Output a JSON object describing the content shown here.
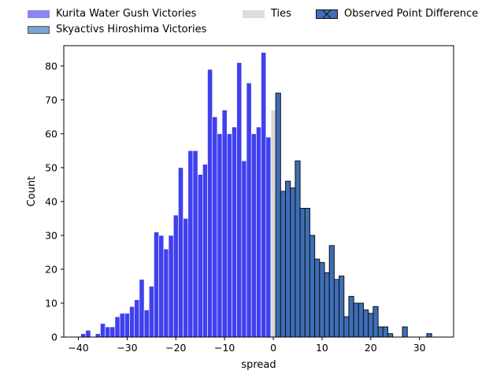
{
  "chart_data": {
    "type": "bar",
    "xlabel": "spread",
    "ylabel": "Count",
    "xlim": [
      -43,
      37
    ],
    "ylim": [
      0,
      86
    ],
    "bin_width": 1,
    "x_ticks": [
      -40,
      -30,
      -20,
      -10,
      0,
      10,
      20,
      30
    ],
    "y_ticks": [
      0,
      10,
      20,
      30,
      40,
      50,
      60,
      70,
      80
    ],
    "x_tick_labels": [
      "−40",
      "−30",
      "−20",
      "−10",
      "0",
      "10",
      "20",
      "30"
    ],
    "y_tick_labels": [
      "0",
      "10",
      "20",
      "30",
      "40",
      "50",
      "60",
      "70",
      "80"
    ],
    "legend_placement": "above plot",
    "series": [
      {
        "name": "Kurita Water Gush Victories",
        "color": "#4040ef",
        "x": [
          -39,
          -38,
          -36,
          -35,
          -34,
          -33,
          -32,
          -31,
          -30,
          -29,
          -28,
          -27,
          -26,
          -25,
          -24,
          -23,
          -22,
          -21,
          -20,
          -19,
          -18,
          -17,
          -16,
          -15,
          -14,
          -13,
          -12,
          -11,
          -10,
          -9,
          -8,
          -7,
          -6,
          -5,
          -4,
          -3,
          -2,
          -1
        ],
        "values": [
          1,
          2,
          1,
          4,
          3,
          3,
          6,
          7,
          7,
          9,
          11,
          17,
          8,
          15,
          31,
          30,
          26,
          30,
          36,
          50,
          35,
          55,
          55,
          48,
          51,
          79,
          65,
          60,
          67,
          60,
          62,
          81,
          52,
          75,
          60,
          62,
          84,
          59
        ]
      },
      {
        "name": "Ties",
        "color": "#d9d9d9",
        "x": [
          0
        ],
        "values": [
          67
        ]
      },
      {
        "name": "Skyactivs Hiroshima Victories",
        "color": "#3d6eb7",
        "x": [
          1,
          2,
          3,
          4,
          5,
          6,
          7,
          8,
          9,
          10,
          11,
          12,
          13,
          14,
          15,
          16,
          17,
          18,
          19,
          20,
          21,
          22,
          23,
          24,
          27,
          32
        ],
        "values": [
          72,
          43,
          46,
          44,
          52,
          38,
          38,
          30,
          23,
          22,
          19,
          27,
          17,
          18,
          6,
          12,
          10,
          10,
          8,
          7,
          9,
          3,
          3,
          1,
          3,
          1
        ]
      }
    ],
    "overlay_series": {
      "name": "Observed Point Difference",
      "color": "#3d6eb7",
      "edge_color": "#111111",
      "note_symbol": "boxed-x"
    }
  },
  "legend": {
    "items": [
      {
        "label": "Kurita Water Gush Victories",
        "color": "#8888f5"
      },
      {
        "label": "Skyactivs Hiroshima Victories",
        "color": "#7ba3d6"
      },
      {
        "label": "Ties",
        "color": "#dddddd"
      },
      {
        "label": "Observed Point Difference",
        "color": "#3d6eb7"
      }
    ]
  }
}
